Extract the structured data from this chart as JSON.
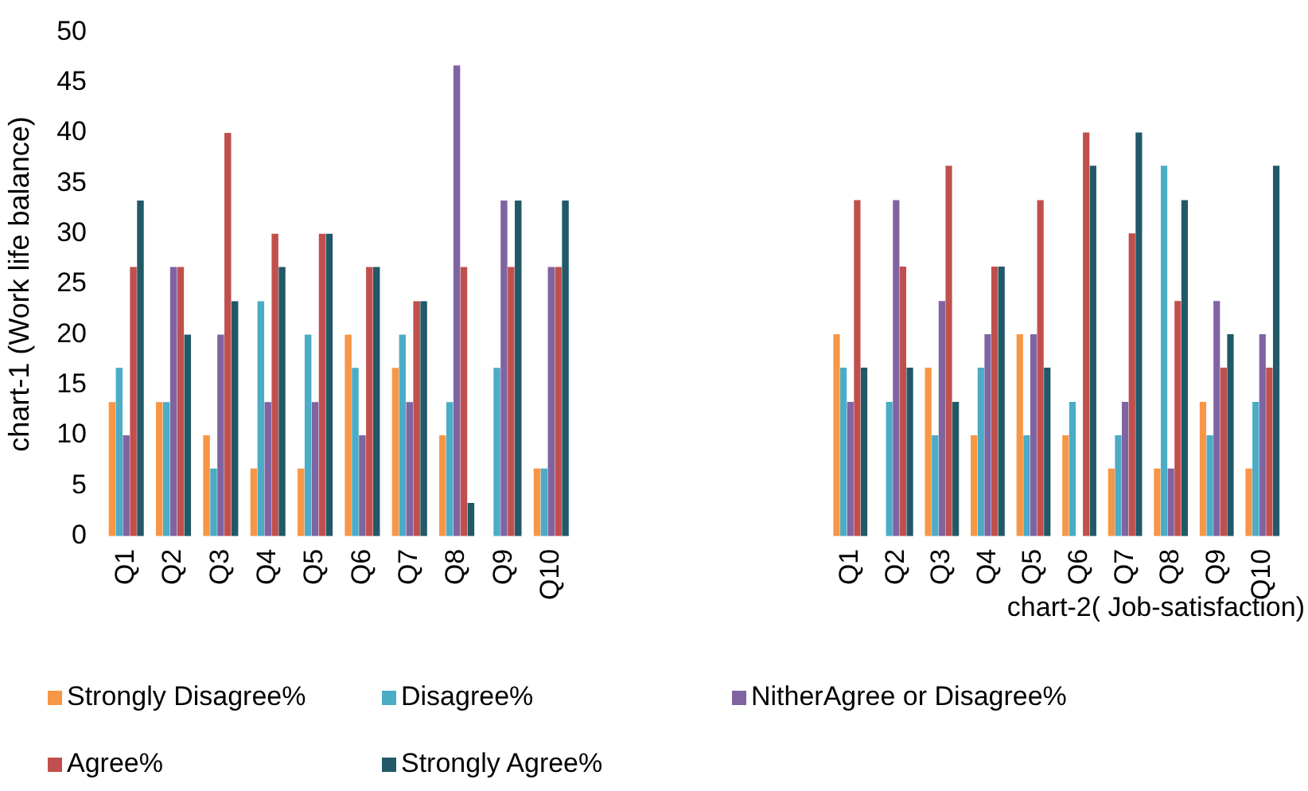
{
  "chart_data": [
    {
      "type": "bar",
      "ylabel": "chart-1 (Work life balance)",
      "categories": [
        "Q1",
        "Q2",
        "Q3",
        "Q4",
        "Q5",
        "Q6",
        "Q7",
        "Q8",
        "Q9",
        "Q10"
      ],
      "ylim": [
        0,
        50
      ],
      "yticks": [
        0,
        5,
        10,
        15,
        20,
        25,
        30,
        35,
        40,
        45,
        50
      ],
      "grid": false,
      "legend": "bottom",
      "series": [
        {
          "name": "Strongly Disagree%",
          "color": "#f79646",
          "values": [
            13.3,
            13.3,
            10,
            6.7,
            6.7,
            20,
            16.7,
            10,
            0,
            6.7
          ]
        },
        {
          "name": "Disagree%",
          "color": "#4bacc6",
          "values": [
            16.7,
            13.3,
            6.7,
            23.3,
            20,
            16.7,
            20,
            13.3,
            16.7,
            6.7
          ]
        },
        {
          "name": "NitherAgree or Disagree%",
          "color": "#8064a2",
          "values": [
            10,
            26.7,
            20,
            13.3,
            13.3,
            10,
            13.3,
            46.7,
            33.3,
            26.7
          ]
        },
        {
          "name": "Agree%",
          "color": "#c0504d",
          "values": [
            26.7,
            26.7,
            40,
            30,
            30,
            26.7,
            23.3,
            26.7,
            26.7,
            26.7
          ]
        },
        {
          "name": "Strongly Agree%",
          "color": "#215968",
          "values": [
            33.3,
            20,
            23.3,
            26.7,
            30,
            26.7,
            23.3,
            3.3,
            33.3,
            33.3
          ]
        }
      ]
    },
    {
      "type": "bar",
      "xlabel": "chart-2( Job-satisfaction)",
      "categories": [
        "Q1",
        "Q2",
        "Q3",
        "Q4",
        "Q5",
        "Q6",
        "Q7",
        "Q8",
        "Q9",
        "Q10"
      ],
      "ylim": [
        0,
        50
      ],
      "tick_labels": "x",
      "grid": false,
      "series": [
        {
          "color": "#f79646",
          "values": [
            20,
            0,
            16.7,
            10,
            20,
            10,
            6.7,
            6.7,
            13.3,
            6.7
          ]
        },
        {
          "color": "#4bacc6",
          "values": [
            16.7,
            13.3,
            10,
            16.7,
            10,
            13.3,
            10,
            36.7,
            10,
            13.3
          ]
        },
        {
          "color": "#8064a2",
          "values": [
            13.3,
            33.3,
            23.3,
            20,
            20,
            0,
            13.3,
            6.7,
            23.3,
            20
          ]
        },
        {
          "color": "#c0504d",
          "values": [
            33.3,
            26.7,
            36.7,
            26.7,
            33.3,
            40,
            30,
            23.3,
            16.7,
            16.7
          ]
        },
        {
          "color": "#215968",
          "values": [
            16.7,
            16.7,
            13.3,
            26.7,
            16.7,
            36.7,
            40,
            33.3,
            20,
            36.7
          ]
        }
      ]
    }
  ]
}
